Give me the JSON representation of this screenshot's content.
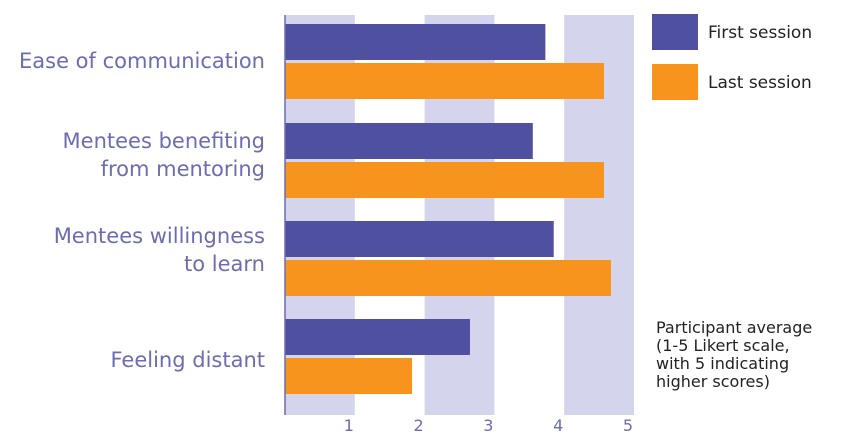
{
  "chart_data": {
    "type": "bar",
    "orientation": "horizontal",
    "title": "",
    "xlabel": "",
    "ylabel": "",
    "categories": [
      [
        "Ease of communication"
      ],
      [
        "Mentees benefiting",
        "from mentoring"
      ],
      [
        "Mentees willingness",
        "to learn"
      ],
      [
        "Feeling distant"
      ]
    ],
    "series": [
      {
        "name": "First session",
        "color": "#5050a0",
        "values": [
          3.73,
          3.55,
          3.85,
          2.65
        ]
      },
      {
        "name": "Last session",
        "color": "#f7941d",
        "values": [
          4.57,
          4.57,
          4.67,
          1.82
        ]
      }
    ],
    "xlim": [
      0,
      5
    ],
    "xticks": [
      "1",
      "2",
      "3",
      "4",
      "5"
    ],
    "grid": "alternating vertical bands",
    "band_color": "#d4d4ec",
    "legend_position": "top-right",
    "note": [
      "Participant average",
      "(1-5 Likert scale,",
      "with 5 indicating",
      "higher scores)"
    ]
  }
}
